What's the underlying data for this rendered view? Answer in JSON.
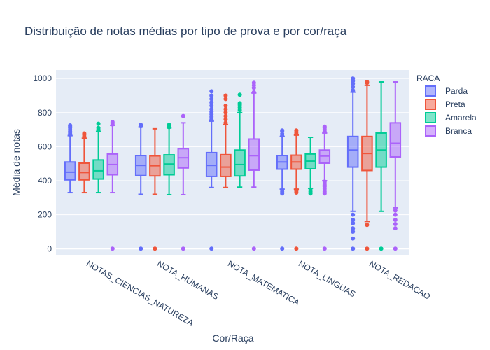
{
  "chart_data": {
    "type": "box",
    "title": "Distribuição de notas médias por tipo de prova e por cor/raça",
    "xlabel": "Cor/Raça",
    "ylabel": "Média de notas",
    "ylim": [
      -40,
      1050
    ],
    "y_ticks": [
      0,
      200,
      400,
      600,
      800,
      1000
    ],
    "y_tick_labels": [
      "0",
      "200",
      "400",
      "600",
      "800",
      "1000"
    ],
    "categories": [
      "NOTAS_CIENCIAS_NATUREZA",
      "NOTA_HUMANAS",
      "NOTA_MATEMATICA",
      "NOTA_LINGUAS",
      "NOTA_REDACAO"
    ],
    "legend": {
      "title": "RACA",
      "position": "top-right"
    },
    "grid": true,
    "series": [
      {
        "name": "Parda",
        "color": "#636efa",
        "boxes": [
          {
            "lowerfence": 330,
            "q1": 405,
            "median": 450,
            "q3": 510,
            "upperfence": 665,
            "outliers": [
              670,
              680,
              690,
              700,
              710,
              720,
              725
            ]
          },
          {
            "lowerfence": 320,
            "q1": 430,
            "median": 490,
            "q3": 548,
            "upperfence": 715,
            "outliers": [
              0,
              720,
              728
            ]
          },
          {
            "lowerfence": 360,
            "q1": 425,
            "median": 490,
            "q3": 565,
            "upperfence": 750,
            "outliers": [
              0,
              760,
              775,
              790,
              805,
              820,
              840,
              860,
              880,
              900,
              925
            ]
          },
          {
            "lowerfence": 350,
            "q1": 468,
            "median": 510,
            "q3": 548,
            "upperfence": 660,
            "outliers": [
              0,
              325,
              335,
              345,
              665,
              675,
              690,
              695
            ]
          },
          {
            "lowerfence": 220,
            "q1": 480,
            "median": 580,
            "q3": 660,
            "upperfence": 920,
            "outliers": [
              0,
              60,
              100,
              120,
              150,
              170,
              200,
              930,
              950,
              970,
              985,
              1000
            ]
          }
        ]
      },
      {
        "name": "Preta",
        "color": "#ef553b",
        "boxes": [
          {
            "lowerfence": 330,
            "q1": 405,
            "median": 448,
            "q3": 503,
            "upperfence": 650,
            "outliers": [
              660,
              670,
              678
            ]
          },
          {
            "lowerfence": 320,
            "q1": 428,
            "median": 488,
            "q3": 546,
            "upperfence": 705,
            "outliers": [
              0
            ]
          },
          {
            "lowerfence": 360,
            "q1": 425,
            "median": 480,
            "q3": 553,
            "upperfence": 730,
            "outliers": [
              740,
              760,
              780,
              800,
              820,
              840,
              880,
              900
            ]
          },
          {
            "lowerfence": 350,
            "q1": 468,
            "median": 510,
            "q3": 550,
            "upperfence": 668,
            "outliers": [
              0,
              330,
              340,
              345,
              675,
              685,
              695
            ]
          },
          {
            "lowerfence": 160,
            "q1": 460,
            "median": 560,
            "q3": 660,
            "upperfence": 960,
            "outliers": [
              0,
              140,
              975,
              980
            ]
          }
        ]
      },
      {
        "name": "Amarela",
        "color": "#00cc96",
        "boxes": [
          {
            "lowerfence": 330,
            "q1": 410,
            "median": 458,
            "q3": 522,
            "upperfence": 690,
            "outliers": [
              700,
              710,
              735
            ]
          },
          {
            "lowerfence": 318,
            "q1": 435,
            "median": 498,
            "q3": 552,
            "upperfence": 710,
            "outliers": [
              715,
              728
            ]
          },
          {
            "lowerfence": 362,
            "q1": 428,
            "median": 495,
            "q3": 580,
            "upperfence": 800,
            "outliers": [
              815,
              830,
              845,
              855,
              905
            ]
          },
          {
            "lowerfence": 355,
            "q1": 470,
            "median": 515,
            "q3": 557,
            "upperfence": 655,
            "outliers": [
              325,
              335,
              345
            ]
          },
          {
            "lowerfence": 220,
            "q1": 480,
            "median": 580,
            "q3": 680,
            "upperfence": 980,
            "outliers": [
              0
            ]
          }
        ]
      },
      {
        "name": "Branca",
        "color": "#ab63fa",
        "boxes": [
          {
            "lowerfence": 330,
            "q1": 435,
            "median": 495,
            "q3": 557,
            "upperfence": 725,
            "outliers": [
              0,
              730,
              738,
              745
            ]
          },
          {
            "lowerfence": 318,
            "q1": 475,
            "median": 535,
            "q3": 588,
            "upperfence": 740,
            "outliers": [
              0,
              780
            ]
          },
          {
            "lowerfence": 362,
            "q1": 462,
            "median": 547,
            "q3": 645,
            "upperfence": 915,
            "outliers": [
              0,
              920,
              945,
              960,
              975
            ]
          },
          {
            "lowerfence": 400,
            "q1": 503,
            "median": 545,
            "q3": 580,
            "upperfence": 680,
            "outliers": [
              0,
              325,
              335,
              345,
              355,
              365,
              375,
              385,
              395,
              690,
              700,
              710,
              718
            ]
          },
          {
            "lowerfence": 240,
            "q1": 540,
            "median": 620,
            "q3": 740,
            "upperfence": 980,
            "outliers": [
              0,
              120,
              145,
              170,
              200,
              225
            ]
          }
        ]
      }
    ]
  }
}
